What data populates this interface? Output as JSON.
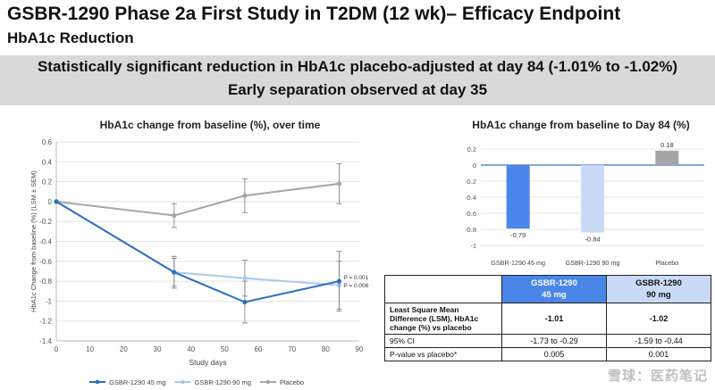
{
  "header": {
    "title": "GSBR-1290 Phase 2a First Study in T2DM (12 wk)– Efficacy Endpoint",
    "subtitle": "HbA1c Reduction"
  },
  "banner": {
    "line1": "Statistically significant reduction in HbA1c placebo-adjusted at day 84 (-1.01% to -1.02%)",
    "line2": "Early separation observed at day 35"
  },
  "chart_data": [
    {
      "type": "line",
      "title": "HbA1c change from baseline (%), over time",
      "xlabel": "Study days",
      "ylabel": "HbA1c Change from baseline (%) (LSM ± SEM)",
      "xlim": [
        0,
        90
      ],
      "ylim": [
        -1.4,
        0.6
      ],
      "xticks": [
        0,
        10,
        20,
        30,
        40,
        50,
        60,
        70,
        80,
        90
      ],
      "yticks": [
        0.6,
        0.4,
        0.2,
        0,
        -0.2,
        -0.4,
        -0.6,
        -0.8,
        -1,
        -1.2,
        -1.4
      ],
      "x": [
        0,
        35,
        56,
        84
      ],
      "series": [
        {
          "name": "GSBR-1290 45 mg",
          "color": "#2f6ec1",
          "values": [
            0,
            -0.71,
            -1.01,
            -0.8
          ],
          "err": [
            0,
            0.16,
            0.21,
            0.3
          ]
        },
        {
          "name": "GSBR-1290 90 mg",
          "color": "#a9c9ee",
          "values": [
            0,
            -0.71,
            -0.77,
            -0.84
          ],
          "err": [
            0,
            0.14,
            0.18,
            0.24
          ]
        },
        {
          "name": "Placebo",
          "color": "#a6a6a6",
          "values": [
            0,
            -0.14,
            0.06,
            0.18
          ],
          "err": [
            0,
            0.12,
            0.17,
            0.2
          ]
        }
      ],
      "annotations": [
        "P = 0.001",
        "P = 0.008"
      ],
      "legend": "bottom"
    },
    {
      "type": "bar",
      "title": "HbA1c change from baseline to Day 84 (%)",
      "categories": [
        "GSBR-1290 45 mg",
        "GSBR-1290 90 mg",
        "Placebo"
      ],
      "values": [
        -0.79,
        -0.84,
        0.18
      ],
      "data_labels": [
        "-0.79",
        "-0.84",
        "0.18"
      ],
      "colors": [
        "#4a86e8",
        "#c9daf8",
        "#a6a6a6"
      ],
      "ylim": [
        -1.0,
        0.3
      ],
      "yticks": [
        0.2,
        0,
        -0.2,
        -0.4,
        -0.6,
        -0.8,
        -1
      ]
    }
  ],
  "table": {
    "headers": [
      "GSBR-1290\n45 mg",
      "GSBR-1290\n90 mg"
    ],
    "header_colors": [
      "#4a86e8",
      "#c9daf8"
    ],
    "rows": [
      {
        "label": "Least Square Mean Difference (LSM), HbA1c change (%) vs placebo",
        "values": [
          "-1.01",
          "-1.02"
        ],
        "bold": true
      },
      {
        "label": "95% CI",
        "values": [
          "-1.73 to -0.29",
          "-1.59 to -0.44"
        ],
        "bold": false
      },
      {
        "label": "P-value vs placebo*",
        "values": [
          "0.005",
          "0.001"
        ],
        "bold": false
      }
    ]
  },
  "watermark": "雪球：医药笔记"
}
